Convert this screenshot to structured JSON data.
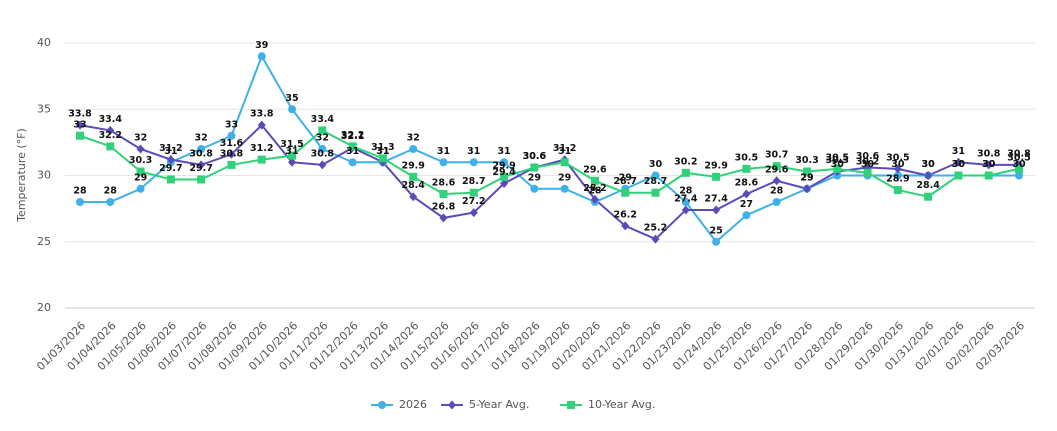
{
  "chart_data": {
    "type": "line",
    "y_label": "Temperature (°F)",
    "categories": [
      "01/03/2026",
      "01/04/2026",
      "01/05/2026",
      "01/06/2026",
      "01/07/2026",
      "01/08/2026",
      "01/09/2026",
      "01/10/2026",
      "01/11/2026",
      "01/12/2026",
      "01/13/2026",
      "01/14/2026",
      "01/15/2026",
      "01/16/2026",
      "01/17/2026",
      "01/18/2026",
      "01/19/2026",
      "01/20/2026",
      "01/21/2026",
      "01/22/2026",
      "01/23/2026",
      "01/24/2026",
      "01/25/2026",
      "01/26/2026",
      "01/27/2026",
      "01/28/2026",
      "01/29/2026",
      "01/30/2026",
      "01/31/2026",
      "02/01/2026",
      "02/02/2026",
      "02/03/2026"
    ],
    "series": [
      {
        "name": "2026",
        "color": "#3fb1e8",
        "marker": "circle",
        "values": [
          28,
          28,
          29,
          31,
          32,
          33,
          39,
          35,
          32,
          31,
          31,
          32,
          31,
          31,
          31,
          29,
          29,
          28,
          29,
          30,
          28,
          25,
          27,
          28,
          29,
          30,
          30,
          30,
          30,
          30,
          30,
          30
        ]
      },
      {
        "name": "5-Year Avg.",
        "color": "#5a4cb8",
        "marker": "diamond",
        "values": [
          33.8,
          33.4,
          32,
          31.2,
          30.8,
          31.6,
          33.8,
          31,
          30.8,
          32.1,
          31,
          28.4,
          26.8,
          27.2,
          29.4,
          30.6,
          31.2,
          28.2,
          26.2,
          25.2,
          27.4,
          27.4,
          28.6,
          29.6,
          29,
          30.3,
          30.6,
          30.5,
          30,
          31,
          30.8,
          30.8
        ]
      },
      {
        "name": "10-Year Avg.",
        "color": "#2fd27a",
        "marker": "square",
        "values": [
          33,
          32.2,
          30.3,
          29.7,
          29.7,
          30.8,
          31.2,
          31.5,
          33.4,
          32.2,
          31.3,
          29.9,
          28.6,
          28.7,
          29.9,
          30.6,
          31,
          29.6,
          28.7,
          28.7,
          30.2,
          29.9,
          30.5,
          30.7,
          30.3,
          30.5,
          30.2,
          28.9,
          28.4,
          30,
          30,
          30.5
        ]
      }
    ],
    "ylim": [
      20,
      40
    ],
    "yticks": [
      20,
      25,
      30,
      35,
      40
    ],
    "grid": true,
    "legend": "bottom"
  }
}
